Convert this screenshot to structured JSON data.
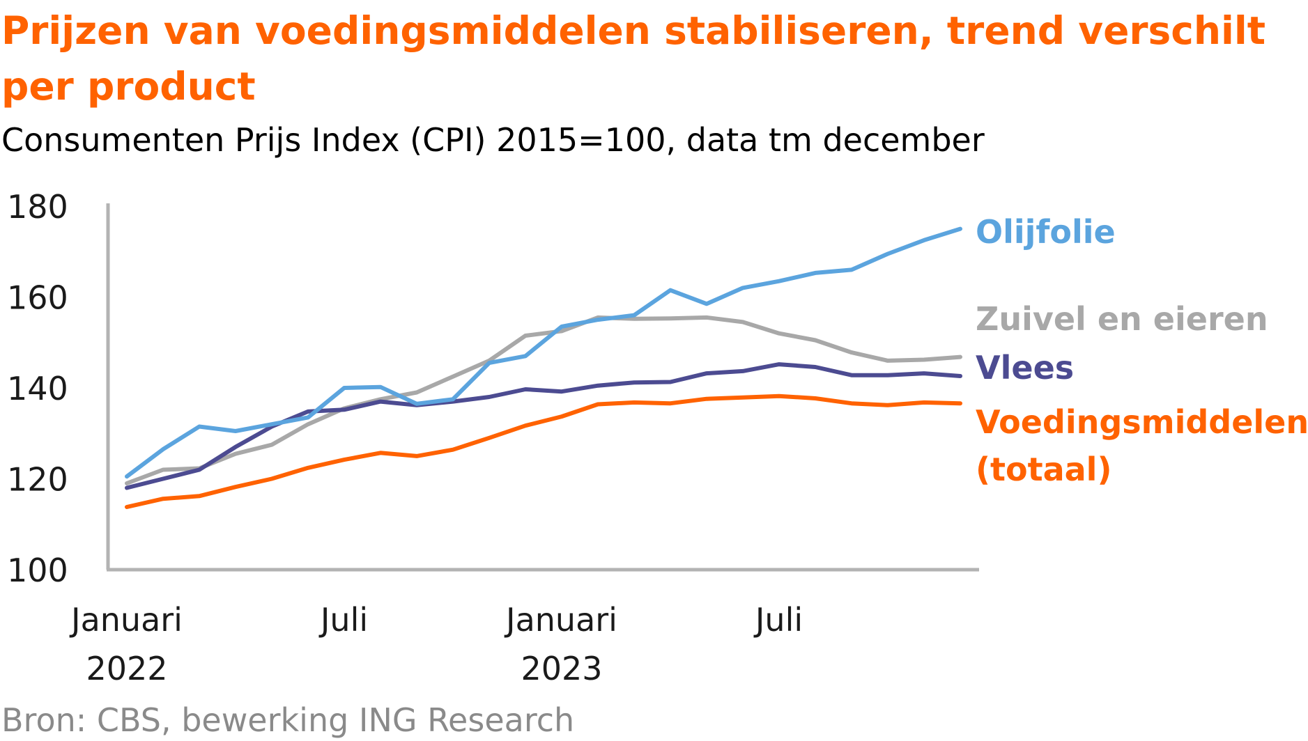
{
  "header": {
    "title": "Prijzen van voedingsmiddelen stabiliseren, trend verschilt per product",
    "subtitle": "Consumenten Prijs Index (CPI) 2015=100, data tm december"
  },
  "footer": {
    "source": "Bron: CBS, bewerking ING Research"
  },
  "chart_data": {
    "type": "line",
    "ylim": [
      100,
      180
    ],
    "yticks": [
      100,
      120,
      140,
      160,
      180
    ],
    "grid": false,
    "legend": "direct labels at right end of lines",
    "x": [
      "jan 2022",
      "feb 2022",
      "mrt 2022",
      "apr 2022",
      "mei 2022",
      "jun 2022",
      "jul 2022",
      "aug 2022",
      "sep 2022",
      "okt 2022",
      "nov 2022",
      "dec 2022",
      "jan 2023",
      "feb 2023",
      "mrt 2023",
      "apr 2023",
      "mei 2023",
      "jun 2023",
      "jul 2023",
      "aug 2023",
      "sep 2023",
      "okt 2023",
      "nov 2023",
      "dec 2023"
    ],
    "xtick_labels": [
      {
        "index": 0,
        "lines": [
          "Januari",
          "2022"
        ]
      },
      {
        "index": 6,
        "lines": [
          "Juli"
        ]
      },
      {
        "index": 12,
        "lines": [
          "Januari",
          "2023"
        ]
      },
      {
        "index": 18,
        "lines": [
          "Juli"
        ]
      }
    ],
    "series": [
      {
        "name": "Olijfolie",
        "color": "#5BA4DE",
        "values": [
          120.5,
          126.5,
          131.5,
          130.5,
          132,
          133.5,
          140,
          140.2,
          136.5,
          137.5,
          145.5,
          147,
          153.5,
          155,
          156,
          161.5,
          158.5,
          162,
          163.5,
          165.3,
          166,
          169.5,
          172.5,
          175
        ]
      },
      {
        "name": "Zuivel en eieren",
        "color": "#A8A8A8",
        "values": [
          119,
          122,
          122.3,
          125.5,
          127.5,
          132,
          135.5,
          137.5,
          139,
          142.5,
          146,
          151.5,
          152.5,
          155.5,
          155.2,
          155.3,
          155.5,
          154.5,
          152,
          150.5,
          147.8,
          146,
          146.2,
          146.8
        ]
      },
      {
        "name": "Vlees",
        "color": "#4C4B91",
        "values": [
          118,
          120,
          122,
          127,
          131.5,
          134.8,
          135.2,
          137,
          136.2,
          137,
          138,
          139.7,
          139.2,
          140.5,
          141.2,
          141.3,
          143.2,
          143.7,
          145.2,
          144.6,
          142.8,
          142.8,
          143.2,
          142.6
        ]
      },
      {
        "name": "Voedingsmiddelen (totaal)",
        "color": "#FF6200",
        "values": [
          113.8,
          115.6,
          116.2,
          118.2,
          120,
          122.4,
          124.2,
          125.7,
          125,
          126.4,
          129,
          131.7,
          133.7,
          136.4,
          136.8,
          136.6,
          137.6,
          137.9,
          138.2,
          137.7,
          136.6,
          136.2,
          136.8,
          136.6
        ]
      }
    ]
  }
}
